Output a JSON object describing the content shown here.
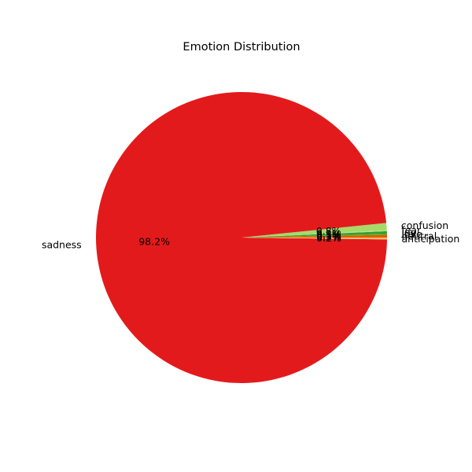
{
  "chart_data": {
    "type": "pie",
    "title": "Emotion Distribution",
    "start_angle_deg": 0,
    "direction": "counterclockwise",
    "slices": [
      {
        "label": "neutral",
        "value": 0.3,
        "pct_label": "0.3%",
        "color": "#d95f02"
      },
      {
        "label": "love",
        "value": 0.1,
        "pct_label": "0.1%",
        "color": "#66a61e"
      },
      {
        "label": "joy",
        "value": 0.3,
        "pct_label": "0.3%",
        "color": "#33a02c"
      },
      {
        "label": "fear",
        "value": 0.1,
        "pct_label": "0.1%",
        "color": "#b2df8a"
      },
      {
        "label": "confusion",
        "value": 0.8,
        "pct_label": "0.8%",
        "color": "#a6d96a"
      },
      {
        "label": "sadness",
        "value": 98.2,
        "pct_label": "98.2%",
        "color": "#e31a1c"
      },
      {
        "label": "anticipation",
        "value": 0.2,
        "pct_label": "0.2%",
        "color": "#fdbf6f"
      }
    ]
  }
}
